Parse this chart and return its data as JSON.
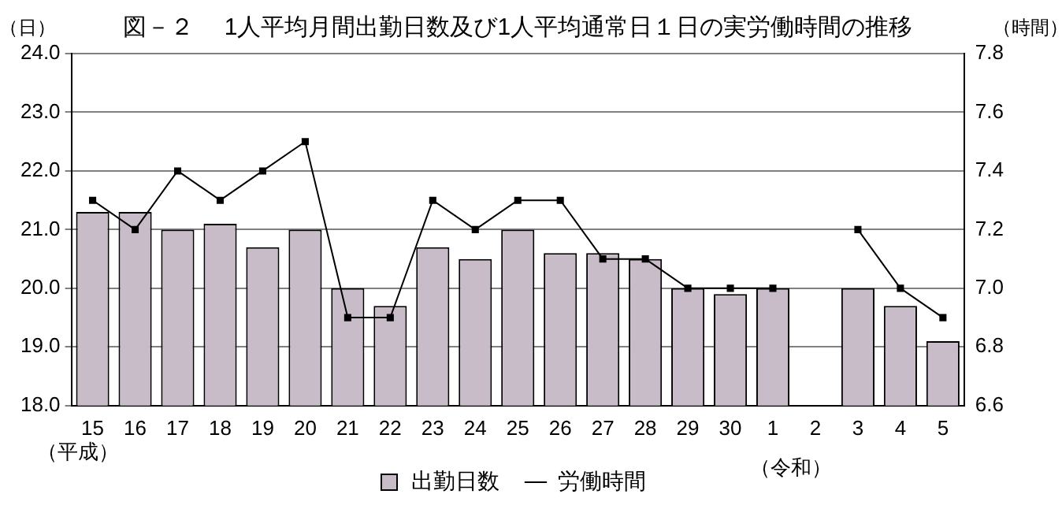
{
  "chart_data": {
    "type": "bar",
    "title": "図－２　 1人平均月間出勤日数及び1人平均通常日１日の実労働時間の推移",
    "ylabel": "（日）",
    "y2label": "（時間）",
    "categories": [
      "15",
      "16",
      "17",
      "18",
      "19",
      "20",
      "21",
      "22",
      "23",
      "24",
      "25",
      "26",
      "27",
      "28",
      "29",
      "30",
      "1",
      "2",
      "3",
      "4",
      "5"
    ],
    "series": [
      {
        "name": "出勤日数",
        "color": "#c8bcc8",
        "values": [
          21.3,
          21.3,
          21.0,
          21.1,
          20.7,
          21.0,
          20.0,
          19.7,
          20.7,
          20.5,
          21.0,
          20.6,
          20.6,
          20.5,
          20.0,
          19.9,
          20.0,
          null,
          20.0,
          19.7,
          19.1
        ]
      },
      {
        "name": "労働時間",
        "type": "line",
        "axis": "y2",
        "color": "#000000",
        "values": [
          7.3,
          7.2,
          7.4,
          7.3,
          7.4,
          7.5,
          6.9,
          6.9,
          7.3,
          7.2,
          7.3,
          7.3,
          7.1,
          7.1,
          7.0,
          7.0,
          7.0,
          null,
          7.2,
          7.0,
          6.9
        ]
      }
    ],
    "ylim": [
      18,
      24
    ],
    "yticks": [
      {
        "value": 18,
        "label": "18.0"
      },
      {
        "value": 19,
        "label": "19.0"
      },
      {
        "value": 20,
        "label": "20.0"
      },
      {
        "value": 21,
        "label": "21.0"
      },
      {
        "value": 22,
        "label": "22.0"
      },
      {
        "value": 23,
        "label": "23.0"
      },
      {
        "value": 24,
        "label": "24.0"
      }
    ],
    "y2lim": [
      6.6,
      7.8
    ],
    "y2ticks": [
      6.6,
      6.8,
      {
        "value": 7,
        "label": "7.0"
      },
      7.2,
      7.4,
      7.6,
      7.8
    ],
    "annotations": [
      "（平成）",
      "（令和）"
    ],
    "grid": "y",
    "legend": "bottom",
    "marker": "square",
    "line_style": "solid"
  }
}
